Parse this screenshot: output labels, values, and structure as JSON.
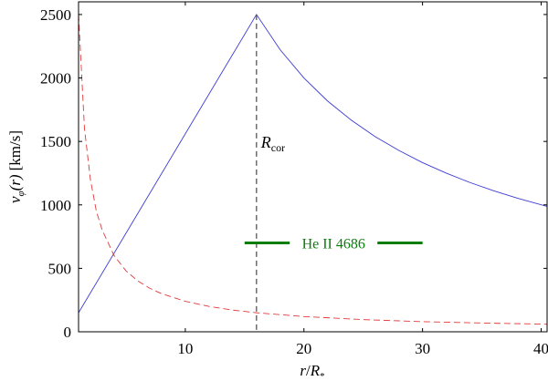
{
  "chart_data": {
    "type": "line",
    "title": "",
    "xlabel": {
      "main": "r",
      "sep": "/",
      "var": "R",
      "sub": "*"
    },
    "ylabel": {
      "main": "v",
      "sub": "φ",
      "args": "(r)",
      "unit": "[km/s]"
    },
    "xlim": [
      1,
      40.5
    ],
    "ylim": [
      0,
      2600
    ],
    "xticks": [
      10,
      20,
      30,
      40
    ],
    "yticks": [
      0,
      500,
      1000,
      1500,
      2000,
      2500
    ],
    "grid": false,
    "legend": "none",
    "series": [
      {
        "style": "solid",
        "color": "#3b3bd6",
        "x": [
          1,
          16,
          18,
          20,
          22,
          24,
          26,
          28,
          30,
          32,
          34,
          36,
          38,
          40.5
        ],
        "y": [
          150,
          2500,
          2222,
          2000,
          1818,
          1667,
          1538,
          1429,
          1333,
          1250,
          1176,
          1111,
          1053,
          988
        ]
      },
      {
        "style": "dashed",
        "color": "#e03a3a",
        "x": [
          1,
          1.5,
          2,
          2.5,
          3,
          4,
          5,
          6,
          7,
          8,
          10,
          12,
          14,
          16,
          20,
          25,
          30,
          35,
          40.5
        ],
        "y": [
          2500,
          1600,
          1200,
          950,
          800,
          600,
          480,
          400,
          343,
          300,
          240,
          200,
          171,
          150,
          120,
          96,
          80,
          69,
          60
        ]
      }
    ],
    "annotations": {
      "rcor": {
        "x": 16,
        "label_main": "R",
        "label_sub": "cor",
        "label_y": 1450,
        "color": "#555555"
      },
      "range": {
        "x_start": 15,
        "x_end": 30,
        "y": 700,
        "label": "He II 4686",
        "color": "#0a7d0a"
      }
    }
  }
}
